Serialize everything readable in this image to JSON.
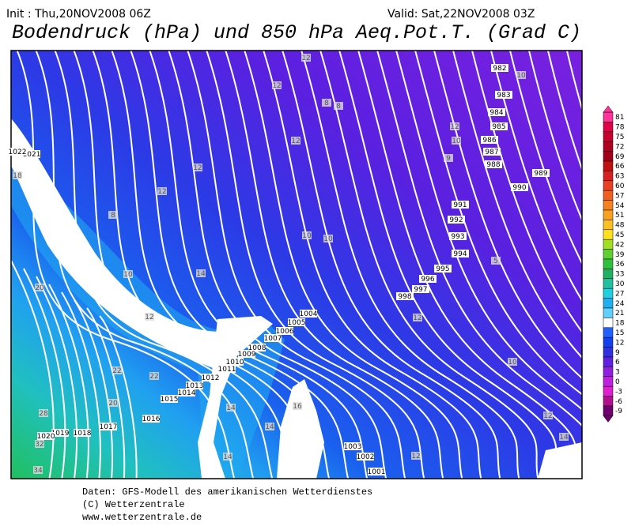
{
  "header": {
    "init": "Init : Thu,20NOV2008 06Z",
    "valid": "Valid: Sat,22NOV2008 03Z",
    "title": "Bodendruck (hPa) und 850 hPa Aeq.Pot.T. (Grad C)"
  },
  "isobar_labels": [
    "982",
    "983",
    "984",
    "985",
    "986",
    "987",
    "988",
    "989",
    "990",
    "991",
    "992",
    "993",
    "994",
    "995",
    "996",
    "997",
    "998",
    "1004",
    "1005",
    "1006",
    "1007",
    "1008",
    "1009",
    "1010",
    "1011",
    "1012",
    "1013",
    "1014",
    "1015",
    "1016",
    "1017",
    "1018",
    "1019",
    "1020",
    "1021",
    "1022",
    "1003",
    "1002",
    "1001"
  ],
  "temperature_labels": [
    "12",
    "10",
    "12",
    "8",
    "8",
    "12",
    "10",
    "12",
    "9",
    "12",
    "12",
    "8",
    "10",
    "10",
    "5",
    "14",
    "10",
    "12",
    "12",
    "20",
    "10",
    "22",
    "22",
    "14",
    "20",
    "16",
    "14",
    "14",
    "12",
    "12",
    "14",
    "18",
    "34",
    "32",
    "28"
  ],
  "colorbar": {
    "ticks": [
      81,
      78,
      75,
      72,
      69,
      66,
      63,
      60,
      57,
      54,
      51,
      48,
      45,
      42,
      39,
      36,
      33,
      30,
      27,
      24,
      21,
      18,
      15,
      12,
      9,
      6,
      3,
      0,
      -3,
      -6,
      -9
    ],
    "colors": [
      "#ff3399",
      "#e0004a",
      "#c8002e",
      "#b00020",
      "#a00018",
      "#c01010",
      "#d82020",
      "#e84020",
      "#f06020",
      "#f48020",
      "#f8a020",
      "#fcc020",
      "#ffe020",
      "#a0e020",
      "#60d030",
      "#30c040",
      "#20b060",
      "#20c0a0",
      "#20d0e0",
      "#20b0f0",
      "#60d0ff",
      "#ffffff",
      "#2060ff",
      "#1040f0",
      "#3030e0",
      "#6020e0",
      "#9020e0",
      "#c020e0",
      "#e020d0",
      "#b01090",
      "#700070"
    ]
  },
  "footer": [
    "Daten: GFS-Modell des amerikanischen Wetterdienstes",
    "(C) Wetterzentrale",
    "www.wetterzentrale.de"
  ]
}
